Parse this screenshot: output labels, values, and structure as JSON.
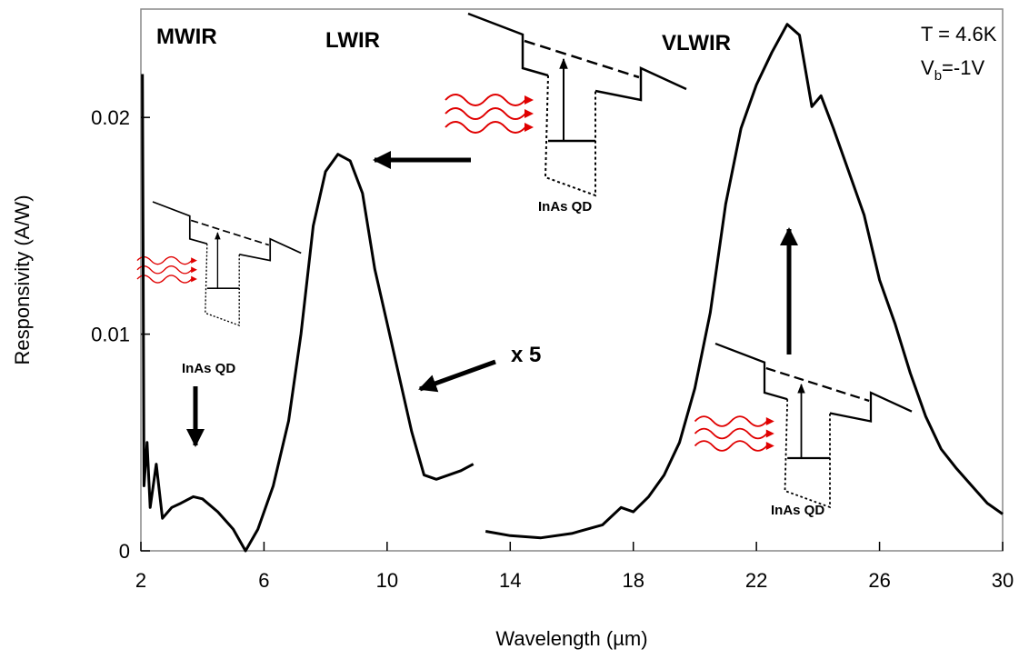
{
  "chart_data": {
    "type": "line",
    "x_label": "Wavelength (µm)",
    "y_label": "Responsivity (A/W)",
    "xlim": [
      2,
      30
    ],
    "ylim": [
      0,
      0.025
    ],
    "xticks": [
      2,
      6,
      10,
      14,
      18,
      22,
      26,
      30
    ],
    "yticks": [
      0,
      0.01,
      0.02
    ],
    "grid": false,
    "x": [
      2.05,
      2.1,
      2.2,
      2.3,
      2.5,
      2.7,
      3.0,
      3.3,
      3.7,
      4.0,
      4.5,
      5.0,
      5.4,
      5.8,
      6.3,
      6.8,
      7.2,
      7.6,
      8.0,
      8.4,
      8.8,
      9.2,
      9.6,
      10.0,
      10.4,
      10.8,
      11.2,
      11.6,
      12.0,
      12.4,
      12.8,
      12.9,
      13.2,
      14.0,
      15.0,
      16.0,
      17.0,
      17.6,
      18.0,
      18.5,
      19.0,
      19.5,
      20.0,
      20.5,
      21.0,
      21.5,
      22.0,
      22.5,
      23.0,
      23.4,
      23.8,
      24.1,
      24.5,
      25.0,
      25.5,
      26.0,
      26.5,
      27.0,
      27.5,
      28.0,
      28.5,
      29.0,
      29.5,
      30.0
    ],
    "series": [
      {
        "color": "#000000",
        "values": [
          0.022,
          0.003,
          0.005,
          0.002,
          0.004,
          0.0015,
          0.002,
          0.0022,
          0.0025,
          0.0024,
          0.0018,
          0.001,
          0.0,
          0.001,
          0.003,
          0.006,
          0.01,
          0.015,
          0.0175,
          0.0183,
          0.018,
          0.0165,
          0.013,
          0.0105,
          0.008,
          0.0055,
          0.0035,
          0.0033,
          0.0035,
          0.0037,
          0.004,
          null,
          0.0009,
          0.0007,
          0.0006,
          0.0008,
          0.0012,
          0.002,
          0.0018,
          0.0025,
          0.0035,
          0.005,
          0.0075,
          0.011,
          0.016,
          0.0195,
          0.0215,
          0.023,
          0.0243,
          0.0238,
          0.0205,
          0.021,
          0.0195,
          0.0175,
          0.0155,
          0.0125,
          0.0105,
          0.0082,
          0.0062,
          0.0047,
          0.0038,
          0.003,
          0.0022,
          0.0017
        ]
      }
    ],
    "annotations": [
      "MWIR",
      "LWIR",
      "VLWIR",
      "T = 4.6K",
      "x 5",
      "InAs QD",
      "InAs QD",
      "InAs QD"
    ],
    "bias_label": [
      "V",
      "b",
      "=-1V"
    ]
  }
}
